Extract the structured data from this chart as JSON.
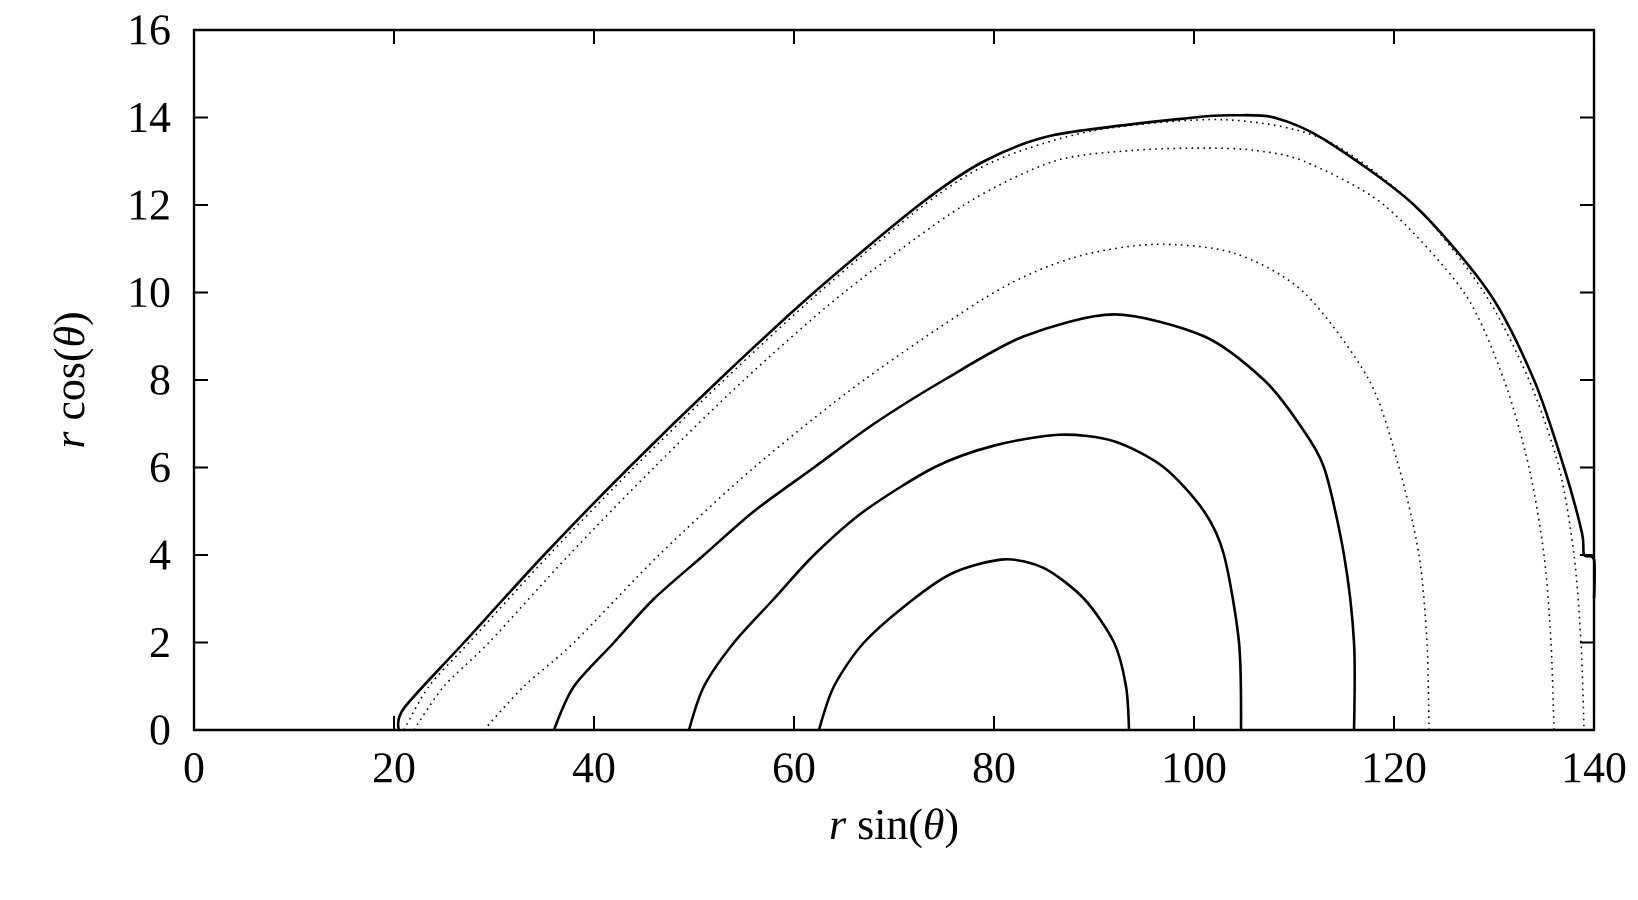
{
  "chart_data": {
    "type": "line",
    "xlabel": "*r* sin(*θ*)",
    "ylabel": "*r* cos(*θ*)",
    "xlim": [
      0,
      140
    ],
    "ylim": [
      0,
      16
    ],
    "xticks": [
      0,
      20,
      40,
      60,
      80,
      100,
      120,
      140
    ],
    "yticks": [
      0,
      2,
      4,
      6,
      8,
      10,
      12,
      14,
      16
    ],
    "grid": false,
    "marker": "none",
    "series": [
      {
        "color": "#000000",
        "line_style": "solid",
        "x": [
          62.5,
          64,
          67,
          72,
          76,
          81,
          85,
          89,
          92,
          93.2,
          93.5
        ],
        "values": [
          0,
          1,
          2,
          3,
          3.6,
          3.9,
          3.7,
          3,
          2,
          1,
          0
        ]
      },
      {
        "color": "#000000",
        "line_style": "solid",
        "x": [
          49.5,
          51,
          54,
          58,
          62,
          67,
          74,
          80,
          86.5,
          92,
          97,
          101,
          103,
          104.5,
          104.7
        ],
        "values": [
          0,
          1,
          2,
          3,
          4,
          5,
          6,
          6.5,
          6.75,
          6.6,
          6,
          5,
          4,
          2,
          0
        ]
      },
      {
        "color": "#000000",
        "line_style": "solid",
        "x": [
          36,
          38,
          42,
          46,
          51,
          56,
          62,
          68,
          75,
          83,
          92,
          101,
          107,
          110.5,
          113,
          115,
          116,
          116
        ],
        "values": [
          0,
          1,
          2,
          3,
          4,
          5,
          6,
          7,
          8,
          9,
          9.5,
          9,
          8,
          7,
          6,
          4,
          2,
          0
        ]
      },
      {
        "color": "#000000",
        "line_style": "dotted",
        "x": [
          29,
          33,
          38,
          46.5,
          56,
          67,
          80,
          88,
          96,
          104,
          111,
          117.5,
          120.5,
          122.5,
          123.3,
          123.5
        ],
        "values": [
          0,
          1,
          2,
          4,
          6,
          8,
          10,
          10.8,
          11.1,
          10.9,
          10,
          8,
          6,
          4,
          2,
          0
        ]
      },
      {
        "color": "#000000",
        "line_style": "dotted",
        "x": [
          22,
          25,
          29.5,
          37.5,
          46,
          55,
          65,
          77,
          86,
          94,
          101,
          106,
          111,
          119,
          127,
          131,
          133.5,
          135,
          135.7,
          136
        ],
        "values": [
          0,
          1,
          2,
          4,
          6,
          8,
          10,
          12,
          13,
          13.25,
          13.3,
          13.25,
          13,
          12,
          10,
          8,
          6,
          4,
          2,
          0
        ]
      },
      {
        "color": "#000000",
        "line_style": "dotted",
        "x": [
          21,
          23.5,
          27.5,
          35.5,
          44,
          53,
          62.5,
          73,
          80,
          90,
          103,
          113,
          122,
          129,
          133.5,
          136.5,
          138,
          138.7,
          139
        ],
        "values": [
          0,
          1,
          2,
          4,
          6,
          8,
          10,
          12,
          13,
          13.7,
          13.95,
          13.5,
          12,
          10,
          8,
          6,
          4,
          2,
          0
        ]
      },
      {
        "color": "#000000",
        "line_style": "solid",
        "x": [
          20.5,
          21,
          27,
          35,
          43.5,
          52.5,
          62,
          72.5,
          79,
          86,
          100,
          104,
          108,
          113,
          122,
          129.5,
          134,
          137,
          138.8,
          139,
          140,
          140
        ],
        "values": [
          0,
          0.5,
          2,
          4,
          6,
          8,
          10,
          12,
          13,
          13.6,
          14,
          14.05,
          14,
          13.5,
          12,
          10,
          8,
          6,
          4.5,
          4,
          3.9,
          3
        ]
      }
    ]
  }
}
